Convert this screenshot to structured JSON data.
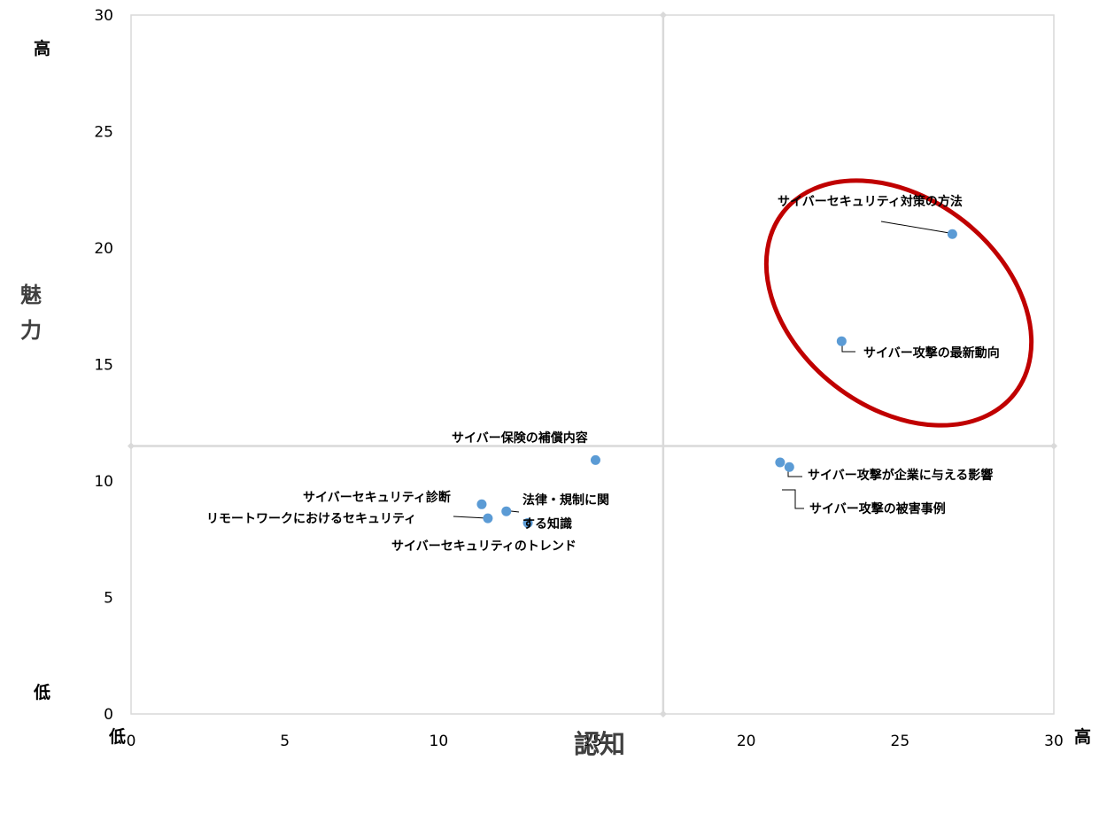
{
  "chart_data": {
    "type": "scatter",
    "xlabel": "認知",
    "ylabel": "魅力",
    "xlim": [
      0,
      30
    ],
    "ylim": [
      0,
      30
    ],
    "xticks": [
      0,
      5,
      10,
      15,
      20,
      25,
      30
    ],
    "yticks": [
      0,
      5,
      10,
      15,
      20,
      25,
      30
    ],
    "quadrant_lines": {
      "x": 17.3,
      "y": 11.5
    },
    "corner_labels": {
      "x_low": "低",
      "x_high": "高",
      "y_low": "低",
      "y_high": "高"
    },
    "marker_color": "#5b9bd5",
    "highlight_color": "#c00000",
    "grid": false,
    "points": [
      {
        "label": "サイバーセキュリティ対策の方法",
        "x": 26.7,
        "y": 20.6
      },
      {
        "label": "サイバー攻撃の最新動向",
        "x": 23.1,
        "y": 16.0
      },
      {
        "label": "サイバー保険の補償内容",
        "x": 15.1,
        "y": 10.9
      },
      {
        "label": "サイバー攻撃が企業に与える影響",
        "x": 21.4,
        "y": 10.6
      },
      {
        "label": "サイバー攻撃の被害事例",
        "x": 21.1,
        "y": 10.8
      },
      {
        "label": "サイバーセキュリティ診断",
        "x": 11.4,
        "y": 9.0
      },
      {
        "label": "法律・規制に関する知識",
        "x": 12.2,
        "y": 8.7
      },
      {
        "label": "リモートワークにおけるセキュリティ",
        "x": 11.6,
        "y": 8.4
      },
      {
        "label": "サイバーセキュリティのトレンド",
        "x": 12.9,
        "y": 8.2
      }
    ]
  }
}
